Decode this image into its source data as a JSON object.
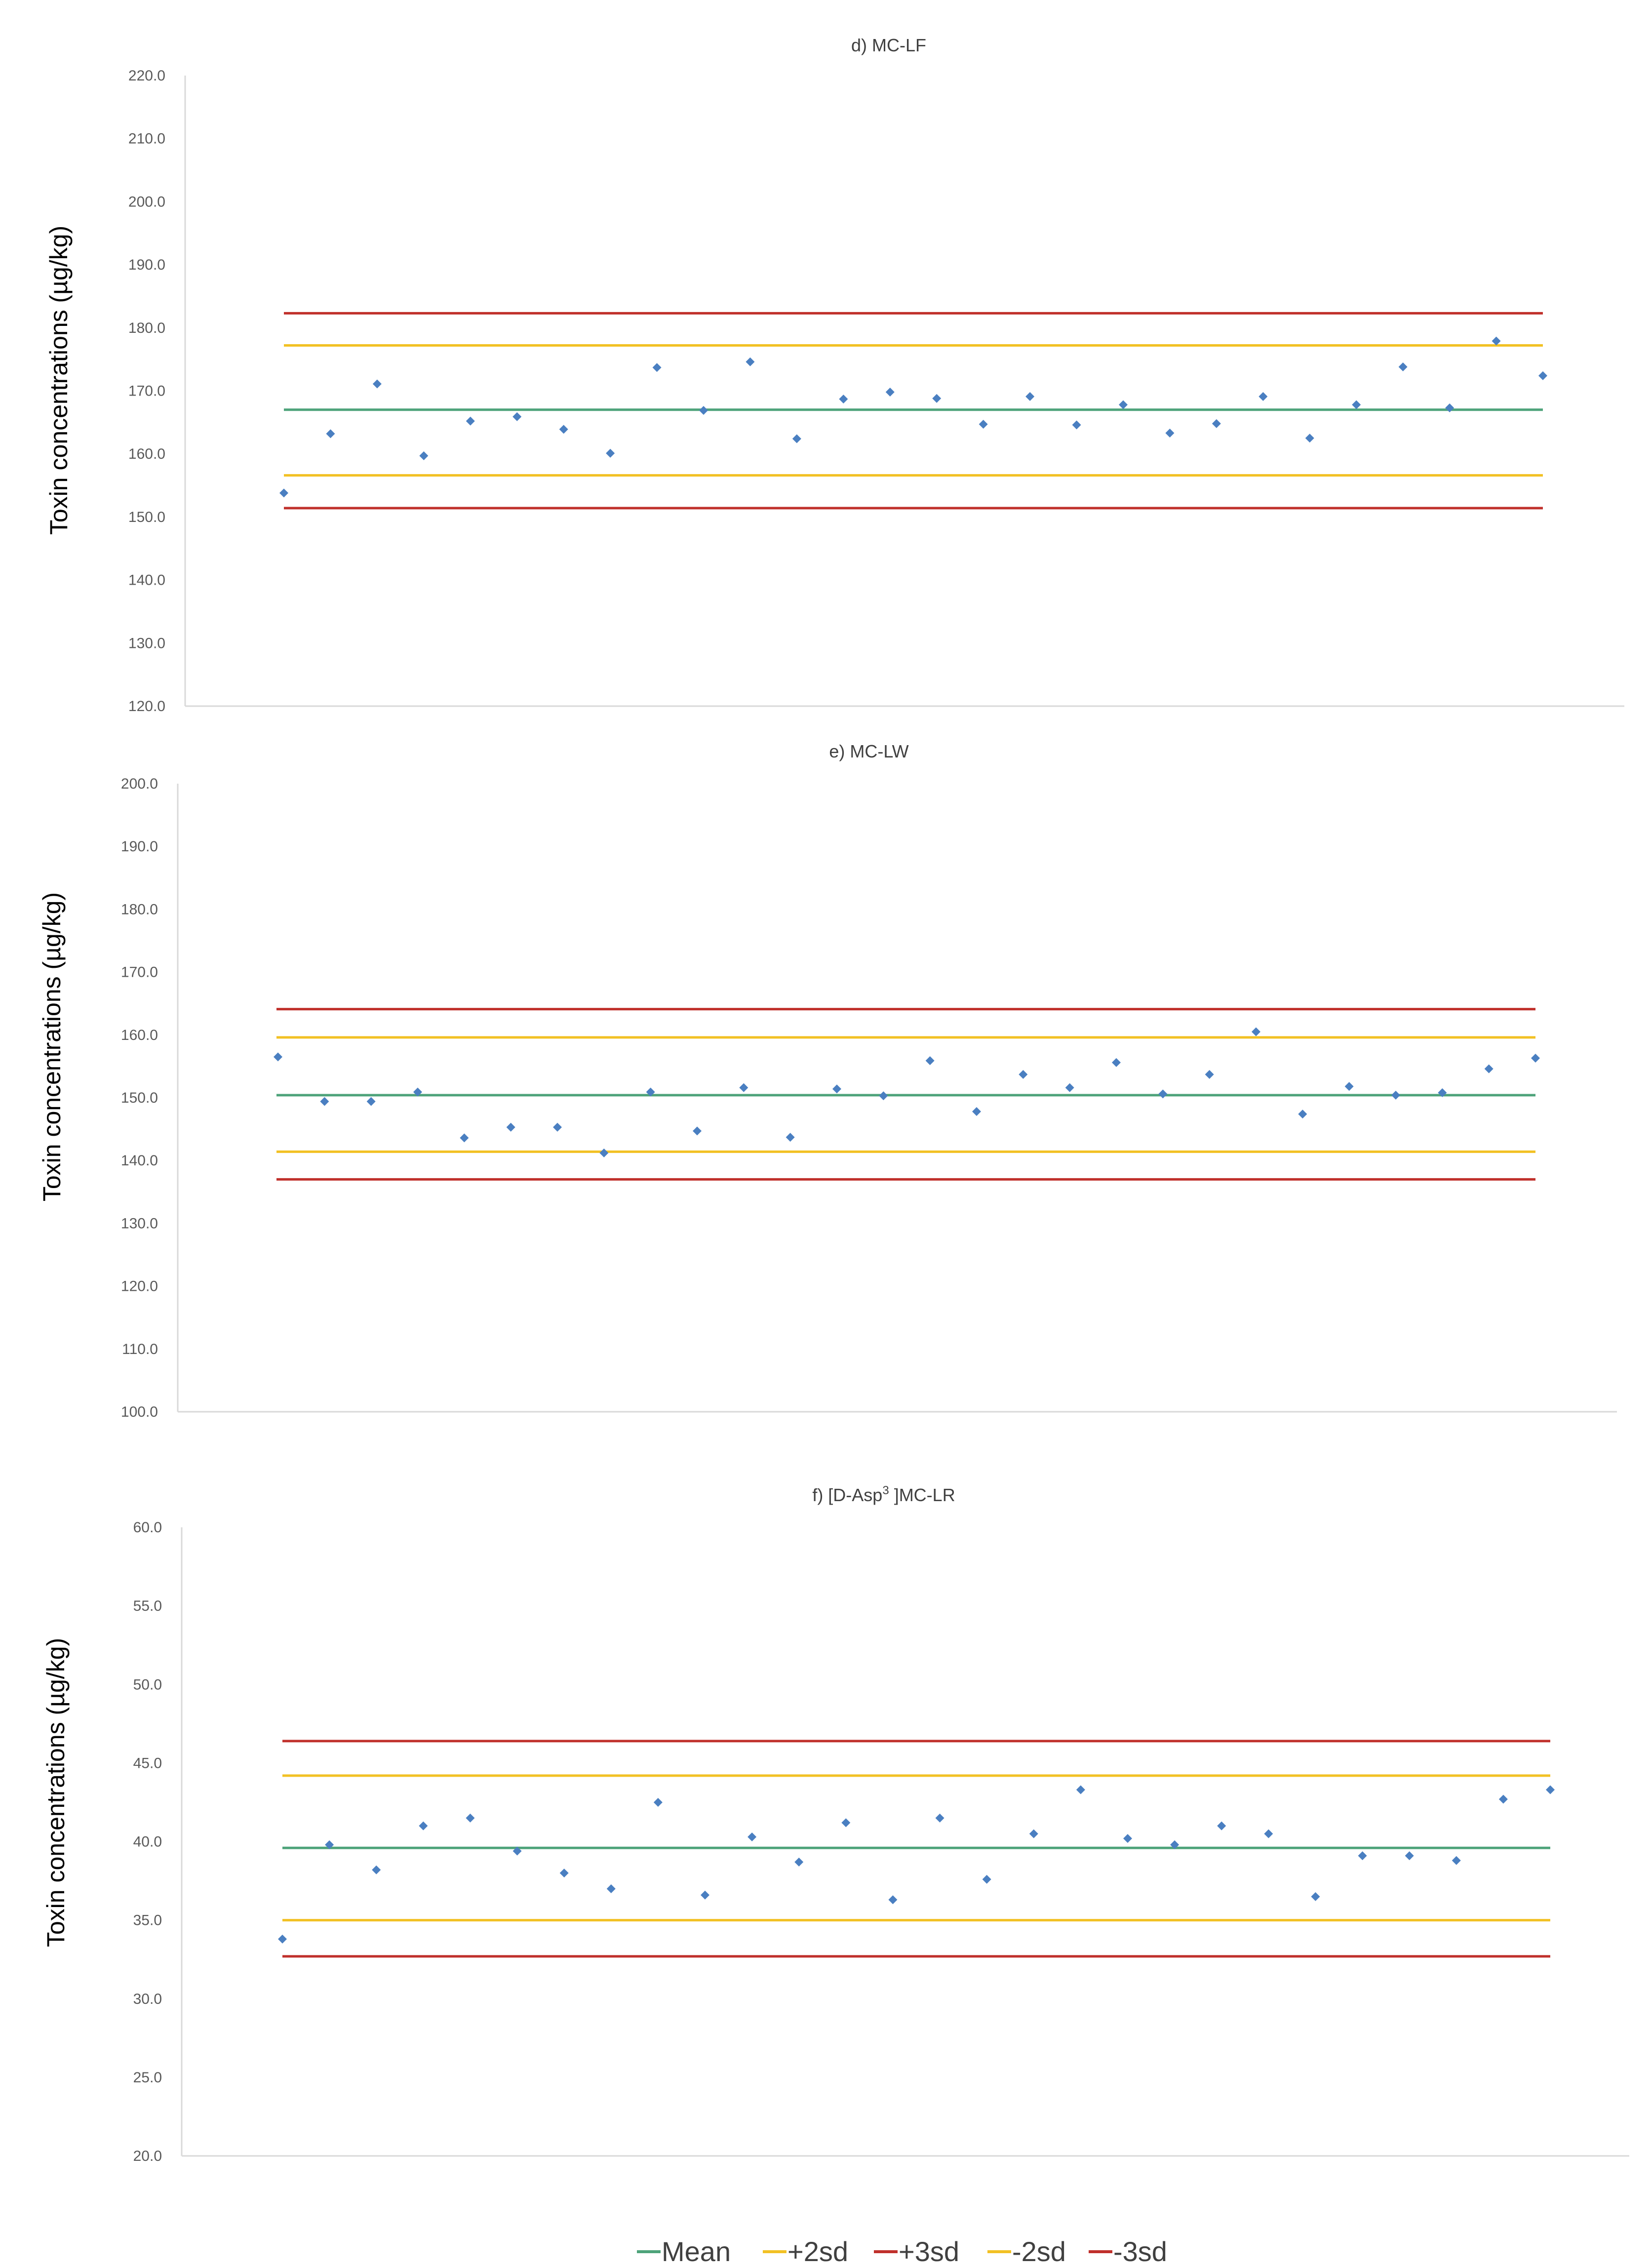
{
  "chart_data": [
    {
      "type": "scatter",
      "title": "d) MC-LF",
      "ylabel": "Toxin concentrations (µg/kg)",
      "ylim": [
        120,
        220
      ],
      "yticks": [
        "120.0",
        "130.0",
        "140.0",
        "150.0",
        "160.0",
        "170.0",
        "180.0",
        "190.0",
        "200.0",
        "210.0",
        "220.0"
      ],
      "points": [
        153.8,
        163.2,
        171.1,
        159.7,
        165.2,
        165.9,
        163.9,
        160.1,
        173.7,
        166.9,
        174.6,
        162.4,
        168.7,
        169.8,
        168.8,
        164.7,
        169.1,
        164.6,
        167.8,
        163.3,
        164.8,
        169.1,
        162.5,
        167.8,
        173.8,
        167.3,
        177.9,
        172.4
      ],
      "lines": {
        "mean": 167.0,
        "plus2sd": 177.2,
        "plus3sd": 182.3,
        "minus2sd": 156.6,
        "minus3sd": 151.4
      }
    },
    {
      "type": "scatter",
      "title": "e) MC-LW",
      "ylabel": "Toxin concentrations (µg/kg)",
      "ylim": [
        100,
        200
      ],
      "yticks": [
        "100.0",
        "110.0",
        "120.0",
        "130.0",
        "140.0",
        "150.0",
        "160.0",
        "170.0",
        "180.0",
        "190.0",
        "200.0"
      ],
      "points": [
        156.5,
        149.4,
        149.4,
        150.9,
        143.6,
        145.3,
        145.3,
        141.2,
        150.9,
        144.7,
        151.6,
        143.7,
        151.4,
        150.3,
        155.9,
        147.8,
        153.7,
        151.6,
        155.6,
        150.6,
        153.7,
        160.5,
        147.4,
        151.8,
        150.4,
        150.8,
        154.6,
        156.3
      ],
      "lines": {
        "mean": 150.4,
        "plus2sd": 159.6,
        "plus3sd": 164.1,
        "minus2sd": 141.4,
        "minus3sd": 137.0
      }
    },
    {
      "type": "scatter",
      "title_main": "f) [D-Asp",
      "title_sup": "3",
      "title_tail": " ]MC-LR",
      "ylabel": "Toxin concentrations (µg/kg)",
      "ylim": [
        20,
        60
      ],
      "yticks": [
        "20.0",
        "25.0",
        "30.0",
        "35.0",
        "40.0",
        "45.0",
        "50.0",
        "55.0",
        "60.0"
      ],
      "points": [
        33.8,
        39.8,
        38.2,
        41.0,
        41.5,
        39.4,
        38.0,
        37.0,
        42.5,
        36.6,
        40.3,
        38.7,
        41.2,
        36.3,
        41.5,
        37.6,
        40.5,
        43.3,
        40.2,
        39.8,
        41.0,
        40.5,
        36.5,
        39.1,
        39.1,
        38.8,
        42.7,
        43.3
      ],
      "lines": {
        "mean": 39.6,
        "plus2sd": 44.2,
        "plus3sd": 46.4,
        "minus2sd": 35.0,
        "minus3sd": 32.7
      }
    }
  ],
  "legend": [
    {
      "key": "mean",
      "label": "Mean",
      "color": "#4ea37a"
    },
    {
      "key": "plus2sd",
      "label": "+2sd",
      "color": "#f2c124"
    },
    {
      "key": "plus3sd",
      "label": "+3sd",
      "color": "#c0302b"
    },
    {
      "key": "minus2sd",
      "label": "-2sd",
      "color": "#f2c124"
    },
    {
      "key": "minus3sd",
      "label": "-3sd",
      "color": "#c0302b"
    }
  ],
  "colors": {
    "marker": "#4a7fc1",
    "axis": "#d9d9d9"
  }
}
